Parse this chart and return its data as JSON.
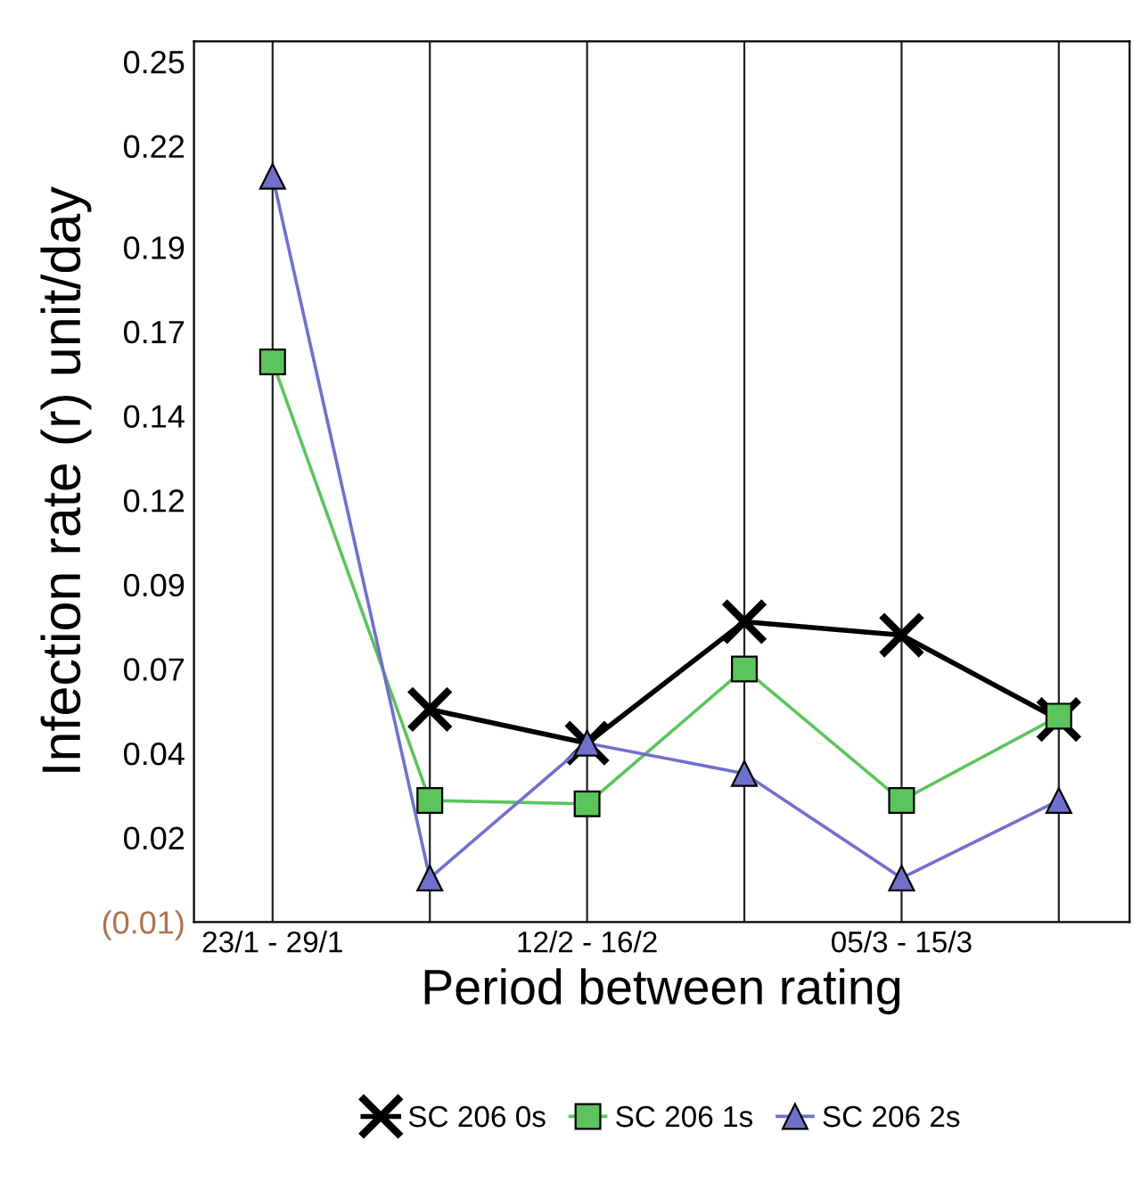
{
  "chart_data": {
    "type": "line",
    "xlabel": "Period between rating",
    "ylabel": "Infection rate (r) unit/day",
    "categories": [
      "23/1 - 29/1",
      null,
      "12/2 - 16/2",
      null,
      "05/3 - 15/3",
      null
    ],
    "series": [
      {
        "name": "SC 206 0s",
        "color": "#000000",
        "marker": "cross",
        "values": [
          null,
          0.058,
          0.048,
          0.084,
          0.08,
          0.055
        ]
      },
      {
        "name": "SC 206 1s",
        "color": "#5cc45c",
        "marker": "square",
        "values": [
          0.161,
          0.031,
          0.03,
          0.07,
          0.031,
          0.056
        ]
      },
      {
        "name": "SC 206 2s",
        "color": "#7070cc",
        "marker": "triangle",
        "values": [
          0.216,
          0.008,
          0.048,
          0.039,
          0.008,
          0.031
        ]
      }
    ],
    "ylim": [
      -0.005,
      0.256
    ],
    "yticks": [
      {
        "value": -0.005,
        "label": "(0.01)"
      },
      0.02,
      {
        "value": 0.045,
        "label": "0.04"
      },
      0.07,
      {
        "value": 0.095,
        "label": "0.09"
      },
      0.12,
      {
        "value": 0.145,
        "label": "0.14"
      },
      0.17,
      {
        "value": 0.195,
        "label": "0.19"
      },
      {
        "value": 0.225,
        "label": "0.22"
      },
      0.25
    ],
    "grid": "x",
    "legend": "bottom",
    "line_style": "solid"
  }
}
